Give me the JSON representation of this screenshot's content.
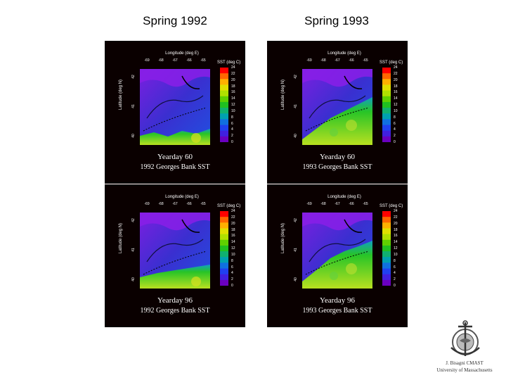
{
  "columns": [
    {
      "title": "Spring 1992"
    },
    {
      "title": "Spring 1993"
    }
  ],
  "axes": {
    "longitude_label": "Longitude (deg E)",
    "latitude_label": "Latitude (deg N)",
    "colorbar_label": "SST (deg C)",
    "lon_ticks": [
      "-69",
      "-68",
      "-67",
      "-66",
      "-65"
    ],
    "lat_ticks": [
      "42",
      "41",
      "40"
    ],
    "colorbar_ticks": [
      "24",
      "22",
      "20",
      "18",
      "16",
      "14",
      "12",
      "10",
      "8",
      "6",
      "4",
      "2",
      "0"
    ]
  },
  "panels": [
    {
      "yearday": "Yearday  60",
      "caption": "1992 Georges Bank SST"
    },
    {
      "yearday": "Yearday  60",
      "caption": "1993 Georges Bank SST"
    },
    {
      "yearday": "Yearday  96",
      "caption": "1992 Georges Bank SST"
    },
    {
      "yearday": "Yearday  96",
      "caption": "1993 Georges Bank SST"
    }
  ],
  "credit": {
    "name": "J. Bisagni CMAST",
    "affiliation": "University of Massachusetts"
  },
  "colors": {
    "panel_bg": "#0a0000",
    "cold": "#3a2fd0",
    "warm": "#27c427"
  }
}
